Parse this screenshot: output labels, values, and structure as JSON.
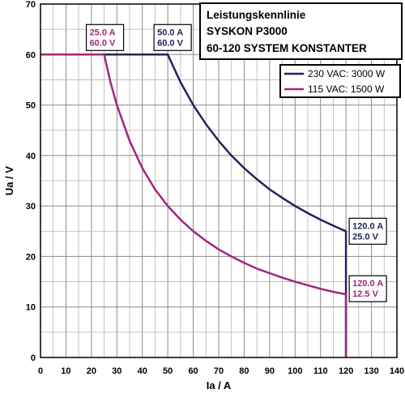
{
  "chart_data": {
    "type": "line",
    "title_lines": [
      "Leistungskennlinie",
      "SYSKON P3000",
      "60-120 SYSTEM KONSTANTER"
    ],
    "xlabel": "Ia / A",
    "ylabel": "Ua / V",
    "xlim": [
      0,
      140
    ],
    "ylim": [
      0,
      70
    ],
    "x_ticks": [
      0,
      10,
      20,
      30,
      40,
      50,
      60,
      70,
      80,
      90,
      100,
      110,
      120,
      130,
      140
    ],
    "y_ticks": [
      0,
      10,
      20,
      30,
      40,
      50,
      60,
      70
    ],
    "grid": true,
    "legend_position": "top-right",
    "series": [
      {
        "name": "230 VAC: 3000 W",
        "color": "#23245a",
        "points": [
          [
            0,
            60
          ],
          [
            50,
            60
          ],
          [
            55,
            54.5
          ],
          [
            60,
            50
          ],
          [
            65,
            46.2
          ],
          [
            70,
            42.9
          ],
          [
            75,
            40
          ],
          [
            80,
            37.5
          ],
          [
            85,
            35.3
          ],
          [
            90,
            33.3
          ],
          [
            95,
            31.6
          ],
          [
            100,
            30
          ],
          [
            105,
            28.6
          ],
          [
            110,
            27.3
          ],
          [
            115,
            26.1
          ],
          [
            120,
            25
          ],
          [
            120,
            0
          ]
        ]
      },
      {
        "name": "115 VAC: 1500 W",
        "color": "#a0267f",
        "points": [
          [
            0,
            60
          ],
          [
            25,
            60
          ],
          [
            27.5,
            54.5
          ],
          [
            30,
            50
          ],
          [
            35,
            42.9
          ],
          [
            40,
            37.5
          ],
          [
            45,
            33.3
          ],
          [
            50,
            30
          ],
          [
            55,
            27.3
          ],
          [
            60,
            25
          ],
          [
            65,
            23.1
          ],
          [
            70,
            21.4
          ],
          [
            75,
            20
          ],
          [
            80,
            18.75
          ],
          [
            85,
            17.6
          ],
          [
            90,
            16.7
          ],
          [
            95,
            15.8
          ],
          [
            100,
            15
          ],
          [
            105,
            14.3
          ],
          [
            110,
            13.6
          ],
          [
            115,
            13
          ],
          [
            120,
            12.5
          ],
          [
            120,
            0
          ]
        ]
      }
    ],
    "annotations": [
      {
        "lines": [
          "25.0 A",
          "60.0 V"
        ],
        "x": 25,
        "y": 60,
        "color": "#a0267f"
      },
      {
        "lines": [
          "50.0 A",
          "60.0 V"
        ],
        "x": 50,
        "y": 60,
        "color": "#23245a"
      },
      {
        "lines": [
          "120.0 A",
          "25.0 V"
        ],
        "x": 120,
        "y": 25,
        "color": "#23245a"
      },
      {
        "lines": [
          "120.0 A",
          "12.5 V"
        ],
        "x": 120,
        "y": 12.5,
        "color": "#a0267f"
      }
    ]
  }
}
